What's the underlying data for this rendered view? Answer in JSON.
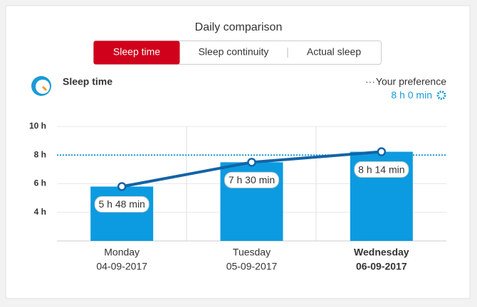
{
  "header": {
    "title": "Daily comparison",
    "tabs": [
      "Sleep time",
      "Sleep continuity",
      "Actual sleep"
    ],
    "active_tab": 0
  },
  "chart_data": {
    "type": "bar_line",
    "title": "Sleep time",
    "categories": [
      "Monday",
      "Tuesday",
      "Wednesday"
    ],
    "dates": [
      "04-09-2017",
      "05-09-2017",
      "06-09-2017"
    ],
    "highlighted_category": 2,
    "values": [
      5.8,
      7.5,
      8.2333
    ],
    "value_labels": [
      "5 h 48 min",
      "7 h 30 min",
      "8 h 14 min"
    ],
    "color": "#0c9be0",
    "line_color": "#1463a6",
    "ylim": [
      2,
      10
    ],
    "yticks": [
      {
        "value": 4,
        "label": "4 h"
      },
      {
        "value": 6,
        "label": "6 h"
      },
      {
        "value": 8,
        "label": "8 h"
      },
      {
        "value": 10,
        "label": "10 h"
      }
    ],
    "grid": true,
    "preference": {
      "name": "Your preference",
      "value": 8,
      "label": "8 h 0 min",
      "color": "#1a9bd7"
    }
  }
}
